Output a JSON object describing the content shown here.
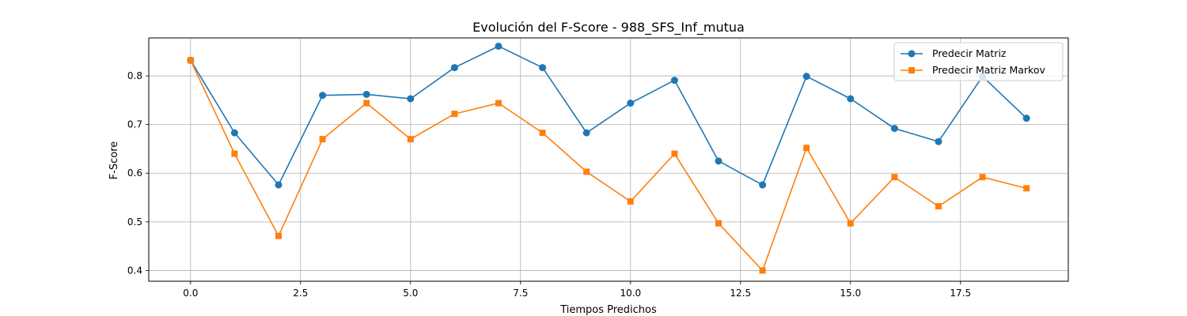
{
  "chart_data": {
    "type": "line",
    "title": "Evolución del F-Score - 988_SFS_Inf_mutua",
    "xlabel": "Tiempos Predichos",
    "ylabel": "F-Score",
    "xlim": [
      -0.95,
      19.95
    ],
    "ylim": [
      0.378,
      0.878
    ],
    "xticks": [
      0.0,
      2.5,
      5.0,
      7.5,
      10.0,
      12.5,
      15.0,
      17.5
    ],
    "xtick_labels": [
      "0.0",
      "2.5",
      "5.0",
      "7.5",
      "10.0",
      "12.5",
      "15.0",
      "17.5"
    ],
    "yticks": [
      0.4,
      0.5,
      0.6,
      0.7,
      0.8
    ],
    "ytick_labels": [
      "0.4",
      "0.5",
      "0.6",
      "0.7",
      "0.8"
    ],
    "grid": true,
    "legend_position": "top-right",
    "x": [
      0,
      1,
      2,
      3,
      4,
      5,
      6,
      7,
      8,
      9,
      10,
      11,
      12,
      13,
      14,
      15,
      16,
      17,
      18,
      19
    ],
    "series": [
      {
        "name": "Predecir Matriz",
        "color": "#1f77b4",
        "marker": "circle",
        "values": [
          0.832,
          0.683,
          0.576,
          0.76,
          0.762,
          0.753,
          0.817,
          0.861,
          0.817,
          0.683,
          0.744,
          0.791,
          0.625,
          0.576,
          0.799,
          0.753,
          0.692,
          0.665,
          0.799,
          0.713
        ]
      },
      {
        "name": "Predecir Matriz Markov",
        "color": "#ff7f0e",
        "marker": "square",
        "values": [
          0.832,
          0.64,
          0.471,
          0.67,
          0.744,
          0.67,
          0.722,
          0.744,
          0.683,
          0.603,
          0.542,
          0.64,
          0.497,
          0.4,
          0.652,
          0.497,
          0.592,
          0.532,
          0.592,
          0.569
        ]
      }
    ]
  }
}
